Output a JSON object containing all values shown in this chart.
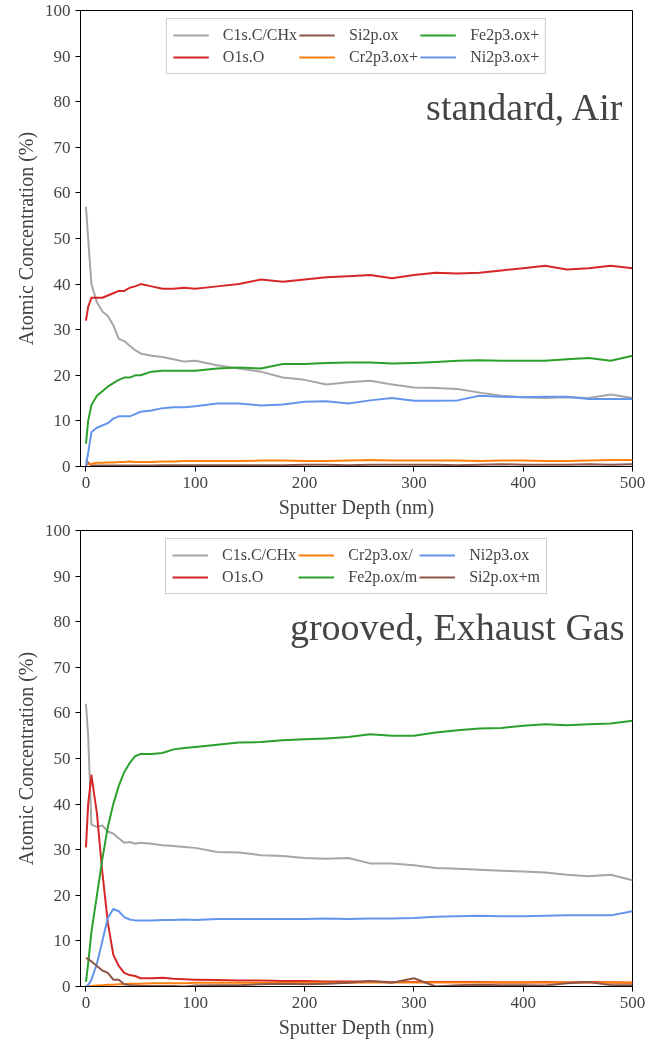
{
  "chart_data": [
    {
      "type": "line",
      "xlabel": "Sputter Depth (nm)",
      "ylabel": "Atomic Concentration (%)",
      "annotations": [
        "standard, Air"
      ],
      "xlim": [
        -5,
        500
      ],
      "ylim": [
        0,
        100
      ],
      "xticks": [
        0,
        100,
        200,
        300,
        400,
        500
      ],
      "yticks": [
        0,
        10,
        20,
        30,
        40,
        50,
        60,
        70,
        80,
        90,
        100
      ],
      "grid": false,
      "legend": "top",
      "line_style": "solid",
      "marker": "none",
      "x": [
        0,
        2,
        5,
        10,
        15,
        20,
        25,
        30,
        35,
        40,
        45,
        50,
        60,
        70,
        80,
        90,
        100,
        120,
        140,
        160,
        180,
        200,
        220,
        240,
        260,
        280,
        300,
        320,
        340,
        360,
        380,
        400,
        420,
        440,
        460,
        480,
        500
      ],
      "series": [
        {
          "name": "C1s.C/CHx",
          "color": "#a6a6a6",
          "values": [
            57,
            50,
            40,
            36,
            34,
            33,
            31,
            28,
            27.5,
            26.5,
            25.5,
            24.8,
            24.3,
            24,
            23.5,
            23,
            23.2,
            22.2,
            21.5,
            20.8,
            19.5,
            19,
            18,
            18.5,
            18.8,
            18,
            17.3,
            17.2,
            17,
            16.2,
            15.5,
            15.2,
            15,
            15.2,
            15,
            15.8,
            15
          ]
        },
        {
          "name": "O1s.O",
          "color": "#d62728",
          "values": [
            32,
            35,
            37,
            37,
            37,
            37.5,
            38,
            38.5,
            38.5,
            39.2,
            39.5,
            40,
            39.5,
            39,
            39,
            39.2,
            39,
            39.5,
            40,
            41,
            40.5,
            41,
            41.5,
            41.7,
            42,
            41.3,
            42,
            42.5,
            42.3,
            42.5,
            43,
            43.5,
            44,
            43.2,
            43.5,
            44,
            43.5
          ]
        },
        {
          "name": "Si2p.ox",
          "color": "#8c564b",
          "values": [
            1.5,
            0.8,
            0.3,
            0.2,
            0.2,
            0.2,
            0.2,
            0.2,
            0.2,
            0.2,
            0.2,
            0.2,
            0.2,
            0.3,
            0.3,
            0.3,
            0.3,
            0.3,
            0.3,
            0.3,
            0.3,
            0.4,
            0.4,
            0.3,
            0.4,
            0.4,
            0.4,
            0.4,
            0.3,
            0.4,
            0.5,
            0.4,
            0.4,
            0.4,
            0.5,
            0.4,
            0.5
          ]
        },
        {
          "name": "Cr2p3.ox+",
          "color": "#ff7f0e",
          "values": [
            0.3,
            0.5,
            0.6,
            0.8,
            0.8,
            0.9,
            0.9,
            1,
            1,
            1.1,
            1,
            1,
            1,
            1.1,
            1.1,
            1.2,
            1.2,
            1.2,
            1.2,
            1.3,
            1.3,
            1.2,
            1.2,
            1.3,
            1.4,
            1.3,
            1.3,
            1.3,
            1.3,
            1.2,
            1.3,
            1.3,
            1.2,
            1.2,
            1.3,
            1.4,
            1.4
          ]
        },
        {
          "name": "Fe2p3.ox+",
          "color": "#2ca02c",
          "values": [
            5,
            10,
            13.5,
            15.5,
            16.5,
            17.5,
            18.3,
            19,
            19.5,
            19.5,
            20,
            20,
            20.8,
            21,
            21,
            21,
            21,
            21.5,
            21.7,
            21.5,
            22.5,
            22.5,
            22.7,
            22.8,
            22.8,
            22.6,
            22.7,
            22.9,
            23.2,
            23.3,
            23.2,
            23.2,
            23.2,
            23.5,
            23.8,
            23.2,
            24.3
          ]
        },
        {
          "name": "Ni2p3.ox+",
          "color": "#6495ed",
          "values": [
            0,
            3,
            7.5,
            8.5,
            9,
            9.5,
            10.5,
            11,
            11,
            11,
            11.5,
            12,
            12.3,
            12.8,
            13,
            13,
            13.2,
            13.8,
            13.8,
            13.4,
            13.6,
            14.2,
            14.3,
            13.8,
            14.5,
            15,
            14.4,
            14.4,
            14.5,
            15.5,
            15.3,
            15.2,
            15.3,
            15.3,
            14.8,
            14.8,
            14.8
          ]
        }
      ]
    },
    {
      "type": "line",
      "xlabel": "Sputter Depth (nm)",
      "ylabel": "Atomic Concentration (%)",
      "annotations": [
        "grooved, Exhaust Gas"
      ],
      "xlim": [
        -5,
        500
      ],
      "ylim": [
        0,
        100
      ],
      "xticks": [
        0,
        100,
        200,
        300,
        400,
        500
      ],
      "yticks": [
        0,
        10,
        20,
        30,
        40,
        50,
        60,
        70,
        80,
        90,
        100
      ],
      "grid": false,
      "legend": "top",
      "line_style": "solid",
      "marker": "none",
      "x": [
        0,
        2,
        5,
        10,
        15,
        20,
        25,
        30,
        35,
        40,
        45,
        50,
        60,
        70,
        80,
        90,
        100,
        120,
        140,
        160,
        180,
        200,
        220,
        240,
        260,
        280,
        300,
        320,
        340,
        360,
        380,
        400,
        420,
        440,
        460,
        480,
        500
      ],
      "series": [
        {
          "name": "C1s.C/CHx",
          "color": "#a6a6a6",
          "values": [
            62,
            55,
            35.5,
            35,
            35.3,
            34,
            33.5,
            32.5,
            31.5,
            31.7,
            31.3,
            31.5,
            31.3,
            31,
            30.8,
            30.6,
            30.4,
            29.5,
            29.4,
            28.8,
            28.6,
            28.2,
            28,
            28.2,
            27,
            27,
            26.6,
            26,
            25.8,
            25.6,
            25.4,
            25.2,
            25,
            24.5,
            24.2,
            24.5,
            23.3
          ]
        },
        {
          "name": "O1s.O",
          "color": "#d62728",
          "values": [
            30.5,
            40,
            46.3,
            38,
            25,
            14,
            7,
            4.5,
            3,
            2.5,
            2.3,
            1.8,
            1.8,
            1.9,
            1.7,
            1.6,
            1.5,
            1.4,
            1.3,
            1.3,
            1.2,
            1.2,
            1.1,
            1.1,
            1.1,
            1,
            1,
            1,
            1,
            1,
            0.9,
            0.9,
            1,
            0.9,
            1,
            0.9,
            0.8
          ]
        },
        {
          "name": "Cr2p3.ox/",
          "color": "#ff7f0e",
          "values": [
            0,
            0,
            0.1,
            0.2,
            0.3,
            0.4,
            0.4,
            0.5,
            0.5,
            0.6,
            0.6,
            0.6,
            0.7,
            0.7,
            0.7,
            0.7,
            0.8,
            0.8,
            0.8,
            0.8,
            0.8,
            0.8,
            0.8,
            0.8,
            0.9,
            0.9,
            0.9,
            0.9,
            0.9,
            0.9,
            0.9,
            0.9,
            0.9,
            0.9,
            0.9,
            0.9,
            0.9
          ]
        },
        {
          "name": "Fe2p.ox/m",
          "color": "#2ca02c",
          "values": [
            1,
            5,
            12,
            20,
            28,
            35,
            40,
            44,
            47,
            49,
            50.5,
            51,
            51,
            51.2,
            52,
            52.3,
            52.5,
            53,
            53.5,
            53.6,
            54,
            54.2,
            54.4,
            54.7,
            55.3,
            55,
            55,
            55.7,
            56.2,
            56.6,
            56.7,
            57.2,
            57.5,
            57.3,
            57.5,
            57.7,
            58.3
          ]
        },
        {
          "name": "Ni2p3.ox",
          "color": "#6495ed",
          "values": [
            0,
            0.3,
            1.5,
            5,
            10,
            15,
            17,
            16.5,
            15.2,
            14.7,
            14.5,
            14.5,
            14.5,
            14.6,
            14.6,
            14.7,
            14.6,
            14.8,
            14.8,
            14.8,
            14.8,
            14.8,
            14.9,
            14.8,
            14.9,
            14.9,
            15,
            15.3,
            15.4,
            15.5,
            15.4,
            15.4,
            15.5,
            15.6,
            15.6,
            15.6,
            16.5
          ]
        },
        {
          "name": "Si2p.ox+m",
          "color": "#8c564b",
          "values": [
            6.3,
            6,
            5.5,
            4.5,
            3.5,
            3,
            1.5,
            1.5,
            0.5,
            0.3,
            0.2,
            0.1,
            0.1,
            0.1,
            0.1,
            0,
            0.2,
            0.3,
            0.3,
            0.5,
            0.6,
            0.5,
            0.6,
            0.8,
            1.2,
            0.8,
            1.8,
            0,
            0.3,
            0.4,
            0.3,
            0.3,
            0.2,
            0.7,
            1,
            0.3,
            0.3
          ]
        }
      ]
    }
  ]
}
